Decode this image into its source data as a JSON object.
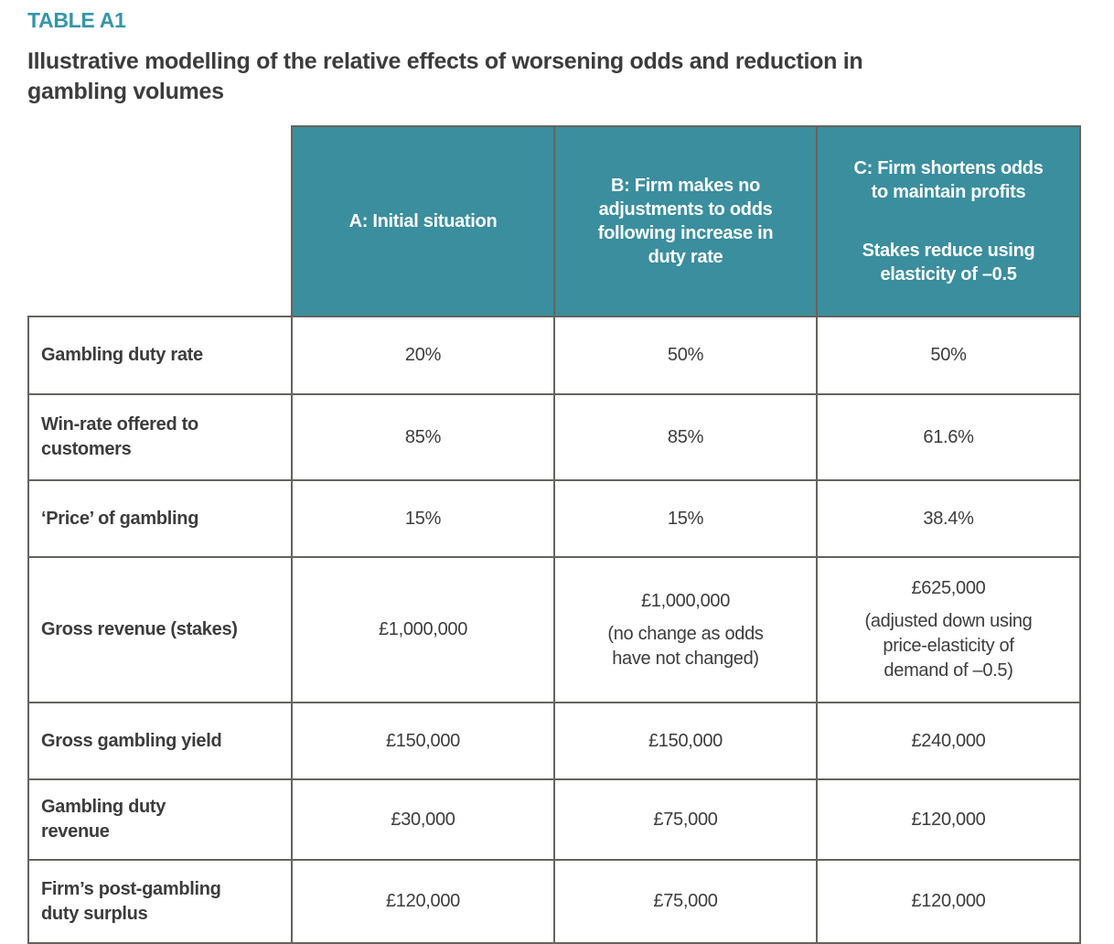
{
  "page": {
    "table_label": "TABLE A1",
    "title": "Illustrative modelling of the relative effects of worsening odds and reduction in\ngambling volumes"
  },
  "colors": {
    "header_fill": "#3a8e9e",
    "accent_teal": "#3695a8",
    "body_text": "#3d3c3c",
    "grid_border": "#64635e"
  },
  "table": {
    "header": {
      "col_a": "A: Initial situation",
      "col_b": "B: Firm makes no\nadjustments to odds\nfollowing increase in\nduty rate",
      "col_c_line1": "C: Firm shortens odds\nto maintain profits",
      "col_c_line2": "Stakes reduce using\nelasticity of –0.5"
    },
    "rows": [
      {
        "label": "Gambling duty rate",
        "cells": [
          {
            "value": "20%"
          },
          {
            "value": "50%"
          },
          {
            "value": "50%"
          }
        ]
      },
      {
        "label": "Win-rate offered to\ncustomers",
        "cells": [
          {
            "value": "85%"
          },
          {
            "value": "85%"
          },
          {
            "value": "61.6%"
          }
        ]
      },
      {
        "label": "‘Price’ of gambling",
        "cells": [
          {
            "value": "15%"
          },
          {
            "value": "15%"
          },
          {
            "value": "38.4%"
          }
        ]
      },
      {
        "label": "Gross revenue (stakes)",
        "cells": [
          {
            "value": "£1,000,000"
          },
          {
            "value": "£1,000,000",
            "note": "(no change as odds\nhave not changed)"
          },
          {
            "value": "£625,000",
            "note": "(adjusted down using\nprice-elasticity of\ndemand of –0.5)"
          }
        ]
      },
      {
        "label": "Gross gambling yield",
        "cells": [
          {
            "value": "£150,000"
          },
          {
            "value": "£150,000"
          },
          {
            "value": "£240,000"
          }
        ]
      },
      {
        "label": "Gambling duty\nrevenue",
        "cells": [
          {
            "value": "£30,000"
          },
          {
            "value": "£75,000"
          },
          {
            "value": "£120,000"
          }
        ]
      },
      {
        "label": "Firm’s post-gambling\nduty surplus",
        "cells": [
          {
            "value": "£120,000"
          },
          {
            "value": "£75,000"
          },
          {
            "value": "£120,000"
          }
        ]
      }
    ]
  }
}
